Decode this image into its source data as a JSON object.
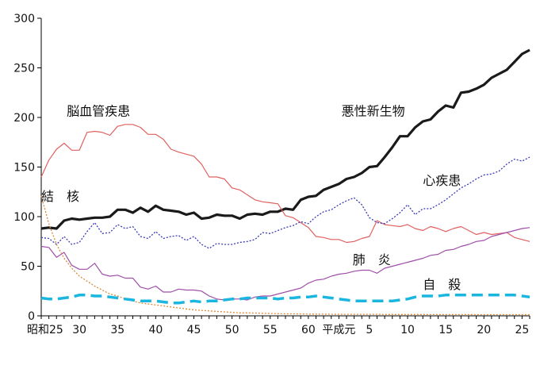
{
  "chart_data": {
    "type": "line",
    "title": "",
    "xlabel": "",
    "ylabel": "",
    "x_index": [
      0,
      1,
      2,
      3,
      4,
      5,
      6,
      7,
      8,
      9,
      10,
      11,
      12,
      13,
      14,
      15,
      16,
      17,
      18,
      19,
      20,
      21,
      22,
      23,
      24,
      25,
      26,
      27,
      28,
      29,
      30,
      31,
      32,
      33,
      34,
      35,
      36,
      37,
      38,
      39,
      40,
      41,
      42,
      43,
      44,
      45,
      46,
      47,
      48,
      49,
      50,
      51,
      52,
      53,
      54,
      55,
      56,
      57,
      58,
      59,
      60,
      61,
      62,
      63,
      64
    ],
    "xlim": [
      0,
      64
    ],
    "ylim": [
      0,
      300
    ],
    "y_ticks": [
      0,
      50,
      100,
      150,
      200,
      250,
      300
    ],
    "x_ticks": [
      {
        "x": 0,
        "label": "昭和25"
      },
      {
        "x": 5,
        "label": "30"
      },
      {
        "x": 10,
        "label": "35"
      },
      {
        "x": 15,
        "label": "40"
      },
      {
        "x": 20,
        "label": "45"
      },
      {
        "x": 25,
        "label": "50"
      },
      {
        "x": 30,
        "label": "55"
      },
      {
        "x": 35,
        "label": "60"
      },
      {
        "x": 39,
        "label": "平成元"
      },
      {
        "x": 43,
        "label": "5"
      },
      {
        "x": 48,
        "label": "10"
      },
      {
        "x": 53,
        "label": "15"
      },
      {
        "x": 58,
        "label": "20"
      },
      {
        "x": 63,
        "label": "25"
      }
    ],
    "series": [
      {
        "name": "悪性新生物",
        "color": "#1a1a1a",
        "style": "solid-thick",
        "values": [
          88,
          89,
          88,
          96,
          98,
          97,
          98,
          99,
          99,
          100,
          107,
          107,
          104,
          109,
          105,
          111,
          107,
          106,
          105,
          102,
          104,
          98,
          99,
          102,
          101,
          101,
          98,
          102,
          103,
          102,
          105,
          105,
          108,
          107,
          117,
          120,
          121,
          127,
          130,
          133,
          138,
          140,
          144,
          150,
          151,
          160,
          170,
          181,
          181,
          190,
          196,
          198,
          206,
          212,
          210,
          225,
          226,
          229,
          233,
          240,
          244,
          248,
          256,
          264,
          268
        ]
      },
      {
        "name": "脳血管疾患",
        "color": "#e06060",
        "style": "solid",
        "values": [
          140,
          157,
          168,
          174,
          167,
          167,
          185,
          186,
          185,
          182,
          191,
          193,
          193,
          190,
          183,
          183,
          178,
          168,
          165,
          163,
          161,
          153,
          140,
          140,
          138,
          129,
          127,
          122,
          117,
          115,
          114,
          113,
          101,
          99,
          94,
          89,
          80,
          79,
          77,
          77,
          74,
          75,
          78,
          80,
          96,
          92,
          91,
          90,
          92,
          88,
          86,
          90,
          88,
          85,
          88,
          90,
          86,
          82,
          84,
          82,
          83,
          84,
          79,
          77,
          75
        ]
      },
      {
        "name": "心疾患",
        "color": "#3a3ab8",
        "style": "dotted",
        "values": [
          79,
          78,
          72,
          80,
          72,
          74,
          85,
          94,
          83,
          84,
          92,
          88,
          90,
          80,
          78,
          85,
          78,
          80,
          81,
          76,
          80,
          72,
          68,
          73,
          72,
          72,
          74,
          75,
          77,
          84,
          83,
          86,
          89,
          91,
          95,
          93,
          100,
          105,
          107,
          112,
          116,
          119,
          112,
          99,
          94,
          93,
          98,
          104,
          112,
          102,
          108,
          108,
          112,
          117,
          123,
          129,
          133,
          138,
          142,
          143,
          146,
          153,
          158,
          156,
          160
        ]
      },
      {
        "name": "肺炎",
        "color": "#9f4fa8",
        "style": "solid",
        "values": [
          70,
          69,
          59,
          64,
          51,
          47,
          47,
          53,
          42,
          40,
          41,
          38,
          38,
          29,
          27,
          30,
          24,
          24,
          27,
          26,
          26,
          25,
          20,
          17,
          16,
          17,
          17,
          16,
          19,
          20,
          20,
          22,
          24,
          26,
          28,
          33,
          36,
          37,
          40,
          42,
          43,
          45,
          46,
          46,
          43,
          48,
          50,
          52,
          54,
          56,
          58,
          61,
          62,
          66,
          67,
          70,
          72,
          75,
          76,
          80,
          82,
          84,
          86,
          88,
          89
        ]
      },
      {
        "name": "結核",
        "color": "#d78a3c",
        "style": "dotted",
        "values": [
          121,
          93,
          72,
          58,
          48,
          40,
          35,
          30,
          26,
          22,
          20,
          17,
          15,
          13,
          12,
          11,
          10,
          9,
          8,
          7,
          6,
          5.5,
          5,
          4.5,
          4,
          3.5,
          3,
          3,
          2.8,
          2.6,
          2.4,
          2.2,
          2,
          2,
          1.9,
          1.8,
          1.8,
          1.7,
          1.6,
          1.5,
          1.5,
          1.5,
          1.5,
          1.5,
          1.5,
          1.4,
          1.4,
          1.4,
          1.4,
          1.4,
          1.4,
          1.3,
          1.3,
          1.3,
          1.3,
          1.3,
          1.3,
          1.2,
          1.2,
          1.2,
          1.2,
          1.2,
          1.2,
          1.2,
          1.2
        ]
      },
      {
        "name": "自殺",
        "color": "#1ab6e0",
        "style": "dashed-thick",
        "values": [
          18,
          17,
          17,
          18,
          19,
          21,
          21,
          20,
          20,
          19,
          18,
          17,
          16,
          15,
          15,
          15,
          14,
          13,
          13,
          14,
          15,
          14,
          15,
          15,
          16,
          17,
          17,
          18,
          18,
          18,
          18,
          17,
          18,
          18,
          19,
          19,
          20,
          19,
          18,
          17,
          16,
          15,
          15,
          15,
          15,
          15,
          15,
          16,
          17,
          19,
          20,
          20,
          20,
          21,
          21,
          21,
          21,
          21,
          21,
          21,
          21,
          21,
          21,
          20,
          19
        ]
      }
    ],
    "annotations": [
      {
        "text": "脳血管疾患",
        "series": "脳血管疾患",
        "anchor_x": 7.5,
        "anchor_y": 207
      },
      {
        "text": "悪性新生物",
        "series": "悪性新生物",
        "anchor_x": 43.5,
        "anchor_y": 207
      },
      {
        "text": "心疾患",
        "series": "心疾患",
        "anchor_x": 52.5,
        "anchor_y": 137
      },
      {
        "text": "結　核",
        "series": "結核",
        "anchor_x": 2.5,
        "anchor_y": 121
      },
      {
        "text": "肺　炎",
        "series": "肺炎",
        "anchor_x": 43.3,
        "anchor_y": 57
      },
      {
        "text": "自　殺",
        "series": "自殺",
        "anchor_x": 52.5,
        "anchor_y": 32
      }
    ]
  }
}
